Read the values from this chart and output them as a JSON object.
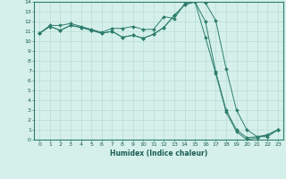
{
  "xlabel": "Humidex (Indice chaleur)",
  "line_color": "#2e7d6e",
  "marker": "D",
  "marker_size": 2.0,
  "bg_color": "#d5f0ea",
  "grid_color": "#b8ddd7",
  "xlim": [
    -0.5,
    23.5
  ],
  "ylim": [
    0,
    14
  ],
  "xticks": [
    0,
    1,
    2,
    3,
    4,
    5,
    6,
    7,
    8,
    9,
    10,
    11,
    12,
    13,
    14,
    15,
    16,
    17,
    18,
    19,
    20,
    21,
    22,
    23
  ],
  "yticks": [
    0,
    1,
    2,
    3,
    4,
    5,
    6,
    7,
    8,
    9,
    10,
    11,
    12,
    13,
    14
  ],
  "curve1_x": [
    0,
    1,
    2,
    3,
    4,
    5,
    6,
    7,
    8,
    9,
    10,
    11,
    12,
    13,
    14,
    15,
    16,
    17,
    18,
    19,
    20,
    21,
    22,
    23
  ],
  "curve1_y": [
    10.8,
    11.6,
    11.6,
    11.8,
    11.5,
    11.2,
    10.9,
    11.3,
    11.3,
    11.5,
    11.2,
    11.2,
    12.5,
    12.3,
    13.8,
    14.2,
    13.9,
    12.1,
    7.2,
    3.0,
    1.0,
    0.3,
    0.3,
    1.0
  ],
  "curve2_x": [
    0,
    1,
    2,
    3,
    4,
    5,
    6,
    7,
    8,
    9,
    10,
    11,
    12,
    13,
    14,
    15,
    16,
    17,
    18,
    19,
    20,
    21,
    22,
    23
  ],
  "curve2_y": [
    10.8,
    11.5,
    11.1,
    11.6,
    11.4,
    11.1,
    10.8,
    11.0,
    10.4,
    10.6,
    10.3,
    10.7,
    11.4,
    12.6,
    13.7,
    14.0,
    12.0,
    6.9,
    3.0,
    1.0,
    0.2,
    0.3,
    0.5,
    1.0
  ],
  "curve3_x": [
    0,
    1,
    2,
    3,
    4,
    5,
    6,
    7,
    8,
    9,
    10,
    11,
    12,
    13,
    14,
    15,
    16,
    17,
    18,
    19,
    20,
    21,
    22,
    23
  ],
  "curve3_y": [
    10.8,
    11.5,
    11.1,
    11.6,
    11.4,
    11.1,
    10.8,
    11.0,
    10.4,
    10.6,
    10.3,
    10.7,
    11.4,
    12.6,
    13.7,
    14.0,
    10.4,
    6.7,
    2.8,
    0.8,
    0.0,
    0.2,
    0.5,
    1.0
  ]
}
